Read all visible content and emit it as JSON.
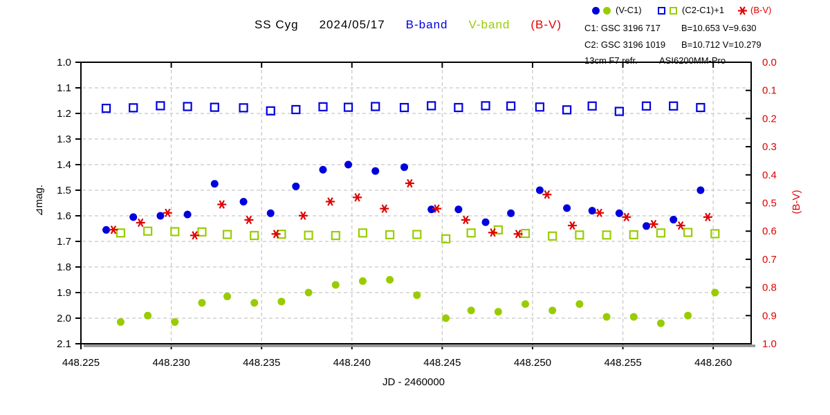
{
  "title": {
    "object": "SS Cyg",
    "date": "2024/05/17",
    "b_label": "B-band",
    "v_label": "V-band",
    "bv_label": "(B-V)"
  },
  "legend": {
    "series1_label": "(V-C1)",
    "series2_label": "(C2-C1)+1",
    "series3_label": "(B-V)",
    "comp1_id": "C1: GSC 3196 717",
    "comp1_mags": "B=10.653 V=9.630",
    "comp2_id": "C2: GSC 3196 1019",
    "comp2_mags": "B=10.712 V=10.279",
    "telescope": "13cm F7 refr.",
    "camera": "ASI6200MM-Pro"
  },
  "axes": {
    "left": {
      "label": "⊿mag.",
      "ticks": [
        1.0,
        1.1,
        1.2,
        1.3,
        1.4,
        1.5,
        1.6,
        1.7,
        1.8,
        1.9,
        2.0,
        2.1
      ]
    },
    "right": {
      "label": "(B-V)",
      "ticks": [
        0.0,
        0.1,
        0.2,
        0.3,
        0.4,
        0.5,
        0.6,
        0.7,
        0.8,
        0.9,
        1.0
      ]
    },
    "bottom": {
      "label": "JD - 2460000",
      "ticks": [
        448.225,
        448.23,
        448.235,
        448.24,
        448.245,
        448.25,
        448.255,
        448.26
      ]
    }
  },
  "chart_data": {
    "type": "scatter",
    "title": "SS Cyg 2024/05/17",
    "xlabel": "JD - 2460000",
    "ylabel_left": "⊿mag.",
    "ylabel_right": "(B-V)",
    "xlim": [
      448.225,
      448.2621
    ],
    "ylim_left": [
      1.0,
      2.1
    ],
    "ylim_right": [
      0.0,
      1.0
    ],
    "grid": {
      "mag": [
        1.1,
        1.2,
        1.3,
        1.4,
        1.5,
        1.6,
        1.7,
        1.8,
        1.9,
        2.0
      ],
      "jd": [
        448.23,
        448.235,
        448.24,
        448.245,
        448.25,
        448.255,
        448.26
      ]
    },
    "colors": {
      "b": "#0000dd",
      "v": "#99cc00",
      "bv": "#e00000",
      "grid": "#c8c8c8",
      "frame": "#000000",
      "shadow": "#909090"
    },
    "series": [
      {
        "name": "B (C2-C1)+1",
        "marker": "square",
        "color": "#0000dd",
        "yaxis": "left",
        "x": [
          448.2264,
          448.2279,
          448.2294,
          448.2309,
          448.2324,
          448.234,
          448.2355,
          448.2369,
          448.2384,
          448.2398,
          448.2413,
          448.2429,
          448.2444,
          448.2459,
          448.2474,
          448.2488,
          448.2504,
          448.2519,
          448.2533,
          448.2548,
          448.2563,
          448.2578,
          448.2593
        ],
        "y": [
          1.18,
          1.178,
          1.17,
          1.173,
          1.176,
          1.178,
          1.19,
          1.185,
          1.174,
          1.176,
          1.173,
          1.177,
          1.17,
          1.177,
          1.17,
          1.171,
          1.175,
          1.186,
          1.171,
          1.192,
          1.171,
          1.171,
          1.177
        ]
      },
      {
        "name": "V (C2-C1)+1",
        "marker": "square",
        "color": "#99cc00",
        "yaxis": "left",
        "x": [
          448.2272,
          448.2287,
          448.2302,
          448.2317,
          448.2331,
          448.2346,
          448.2361,
          448.2376,
          448.2391,
          448.2406,
          448.2421,
          448.2436,
          448.2452,
          448.2466,
          448.2481,
          448.2496,
          448.2511,
          448.2526,
          448.2541,
          448.2556,
          448.2571,
          448.2586,
          448.2601
        ],
        "y": [
          1.667,
          1.66,
          1.662,
          1.663,
          1.673,
          1.677,
          1.672,
          1.676,
          1.677,
          1.667,
          1.674,
          1.673,
          1.69,
          1.667,
          1.655,
          1.669,
          1.679,
          1.675,
          1.675,
          1.674,
          1.667,
          1.665,
          1.67
        ]
      },
      {
        "name": "B-band (V-C1)",
        "marker": "circle",
        "color": "#0000dd",
        "yaxis": "left",
        "x": [
          448.2264,
          448.2279,
          448.2294,
          448.2309,
          448.2324,
          448.234,
          448.2355,
          448.2369,
          448.2384,
          448.2398,
          448.2413,
          448.2429,
          448.2444,
          448.2459,
          448.2474,
          448.2488,
          448.2504,
          448.2519,
          448.2533,
          448.2548,
          448.2563,
          448.2578,
          448.2593
        ],
        "y": [
          1.655,
          1.605,
          1.6,
          1.595,
          1.475,
          1.545,
          1.59,
          1.485,
          1.42,
          1.4,
          1.425,
          1.41,
          1.575,
          1.575,
          1.625,
          1.59,
          1.5,
          1.57,
          1.58,
          1.59,
          1.64,
          1.615,
          1.5
        ]
      },
      {
        "name": "V-band (V-C1)",
        "marker": "circle",
        "color": "#99cc00",
        "yaxis": "left",
        "x": [
          448.2272,
          448.2287,
          448.2302,
          448.2317,
          448.2331,
          448.2346,
          448.2361,
          448.2376,
          448.2391,
          448.2406,
          448.2421,
          448.2436,
          448.2452,
          448.2466,
          448.2481,
          448.2496,
          448.2511,
          448.2526,
          448.2541,
          448.2556,
          448.2571,
          448.2586,
          448.2601
        ],
        "y": [
          2.015,
          1.99,
          2.015,
          1.94,
          1.915,
          1.94,
          1.935,
          1.9,
          1.87,
          1.855,
          1.85,
          1.91,
          2.0,
          1.97,
          1.975,
          1.945,
          1.97,
          1.945,
          1.995,
          1.995,
          2.02,
          1.99,
          1.9
        ]
      },
      {
        "name": "(B-V)",
        "marker": "asterisk",
        "color": "#e00000",
        "yaxis": "right",
        "x": [
          448.2268,
          448.2283,
          448.2298,
          448.2313,
          448.2328,
          448.2343,
          448.2358,
          448.2373,
          448.2388,
          448.2403,
          448.2418,
          448.2432,
          448.2447,
          448.2463,
          448.2478,
          448.2492,
          448.2508,
          448.2522,
          448.2537,
          448.2552,
          448.2567,
          448.2582,
          448.2597
        ],
        "y": [
          0.595,
          0.57,
          0.535,
          0.615,
          0.505,
          0.56,
          0.61,
          0.545,
          0.495,
          0.48,
          0.52,
          0.43,
          0.52,
          0.56,
          0.605,
          0.61,
          0.47,
          0.58,
          0.535,
          0.55,
          0.575,
          0.58,
          0.55
        ]
      }
    ]
  }
}
